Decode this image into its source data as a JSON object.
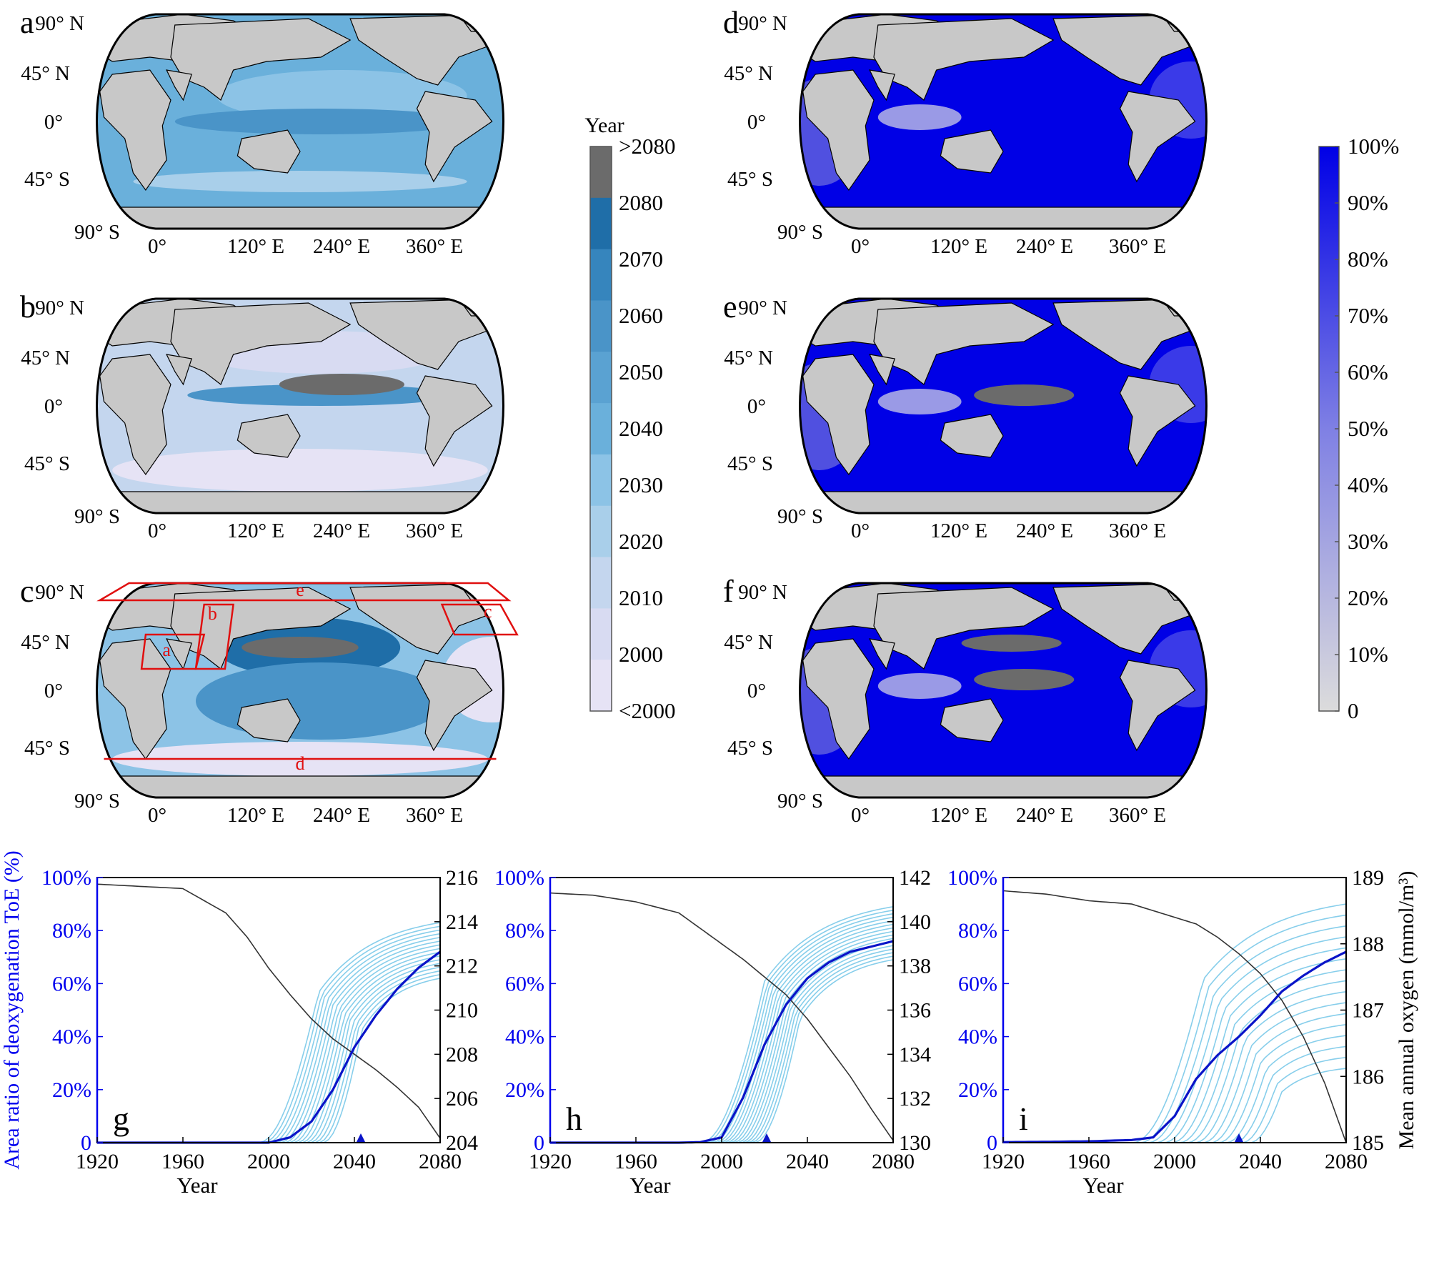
{
  "map_panels": [
    {
      "letter": "a",
      "scheme": "toe",
      "red_regions": false
    },
    {
      "letter": "b",
      "scheme": "toe",
      "red_regions": false
    },
    {
      "letter": "c",
      "scheme": "toe",
      "red_regions": true
    },
    {
      "letter": "d",
      "scheme": "pct",
      "red_regions": false
    },
    {
      "letter": "e",
      "scheme": "pct",
      "red_regions": false
    },
    {
      "letter": "f",
      "scheme": "pct",
      "red_regions": false
    }
  ],
  "map_labels": {
    "lat": [
      "90° N",
      "45° N",
      "0°",
      "45° S",
      "90° S"
    ],
    "lon": [
      "0°",
      "120° E",
      "240° E",
      "360° E"
    ]
  },
  "region_labels": [
    "a",
    "b",
    "c",
    "d",
    "e"
  ],
  "colorbar_year": {
    "title": "Year",
    "ticks": [
      ">2080",
      "2080",
      "2070",
      "2060",
      "2050",
      "2040",
      "2030",
      "2020",
      "2010",
      "2000",
      "<2000"
    ],
    "colors": [
      "#6b6b6b",
      "#1f6ea8",
      "#3685bd",
      "#4a94c8",
      "#5aa2d2",
      "#6ab0db",
      "#8cc3e6",
      "#a9cfea",
      "#c4d6ee",
      "#d8dbf2",
      "#e6e3f5"
    ]
  },
  "colorbar_pct": {
    "ticks": [
      "100%",
      "90%",
      "80%",
      "70%",
      "60%",
      "50%",
      "40%",
      "30%",
      "20%",
      "10%",
      "0"
    ],
    "color_top": "#0000e6",
    "color_bottom": "#dcdcdc"
  },
  "colors": {
    "land": "#c8c8c8",
    "ensemble": "#87ceeb",
    "mean": "#0a14c8",
    "oxygen": "#333333",
    "left_axis": "#0000ee",
    "regions": "#e01010"
  },
  "chart_data": [
    {
      "type": "line",
      "panel": "g",
      "xlabel": "Year",
      "ylabel_left": "Area ratio of deoxygenation ToE (%)",
      "ylabel_right": "",
      "xlim": [
        1920,
        2080
      ],
      "xticks": [
        "1920",
        "1960",
        "2000",
        "2040",
        "2080"
      ],
      "ylim_left": [
        0,
        100
      ],
      "yticks_left": [
        "0",
        "20%",
        "40%",
        "60%",
        "80%",
        "100%"
      ],
      "ylim_right": [
        204,
        216
      ],
      "yticks_right": [
        "204",
        "206",
        "208",
        "210",
        "212",
        "214",
        "216"
      ],
      "toe_marker_year": 2043,
      "x": [
        1920,
        1940,
        1960,
        1980,
        1990,
        2000,
        2010,
        2020,
        2030,
        2040,
        2050,
        2060,
        2070,
        2080
      ],
      "series": [
        {
          "role": "mean",
          "values": [
            0,
            0,
            0,
            0,
            0,
            0,
            2,
            8,
            20,
            36,
            48,
            58,
            66,
            72
          ]
        },
        {
          "role": "oxygen",
          "values": [
            215.7,
            215.6,
            215.5,
            214.4,
            213.3,
            211.9,
            210.7,
            209.6,
            208.7,
            208.0,
            207.3,
            206.5,
            205.6,
            204.2
          ]
        }
      ],
      "ensemble_spread": {
        "start_years": [
          1995,
          2025
        ],
        "end_values": [
          62,
          83
        ]
      }
    },
    {
      "type": "line",
      "panel": "h",
      "xlabel": "Year",
      "ylabel_left": "",
      "ylabel_right": "",
      "xlim": [
        1920,
        2080
      ],
      "xticks": [
        "1920",
        "1960",
        "2000",
        "2040",
        "2080"
      ],
      "ylim_left": [
        0,
        100
      ],
      "yticks_left": [
        "0",
        "20%",
        "40%",
        "60%",
        "80%",
        "100%"
      ],
      "ylim_right": [
        130,
        142
      ],
      "yticks_right": [
        "130",
        "132",
        "134",
        "136",
        "138",
        "140",
        "142"
      ],
      "toe_marker_year": 2021,
      "x": [
        1920,
        1940,
        1960,
        1980,
        1990,
        2000,
        2010,
        2020,
        2030,
        2040,
        2050,
        2060,
        2070,
        2080
      ],
      "series": [
        {
          "role": "mean",
          "values": [
            0,
            0,
            0,
            0,
            0.2,
            2,
            17,
            37,
            52,
            62,
            68,
            72,
            74,
            76
          ]
        },
        {
          "role": "oxygen",
          "values": [
            141.3,
            141.2,
            140.9,
            140.4,
            139.7,
            139.0,
            138.3,
            137.5,
            136.7,
            135.6,
            134.3,
            133.0,
            131.5,
            130.1
          ]
        }
      ],
      "ensemble_spread": {
        "start_years": [
          1990,
          2015
        ],
        "end_values": [
          69,
          89
        ]
      }
    },
    {
      "type": "line",
      "panel": "i",
      "xlabel": "Year",
      "ylabel_left": "",
      "ylabel_right": "Mean annual oxygen (mmol/m³)",
      "xlim": [
        1920,
        2080
      ],
      "xticks": [
        "1920",
        "1960",
        "2000",
        "2040",
        "2080"
      ],
      "ylim_left": [
        0,
        100
      ],
      "yticks_left": [
        "0",
        "20%",
        "40%",
        "60%",
        "80%",
        "100%"
      ],
      "ylim_right": [
        185,
        189
      ],
      "yticks_right": [
        "185",
        "186",
        "187",
        "188",
        "189"
      ],
      "toe_marker_year": 2030,
      "x": [
        1920,
        1940,
        1960,
        1980,
        1990,
        2000,
        2010,
        2020,
        2030,
        2040,
        2050,
        2060,
        2070,
        2080
      ],
      "series": [
        {
          "role": "mean",
          "values": [
            0.2,
            0.3,
            0.5,
            1,
            2,
            10,
            24,
            33,
            40,
            48,
            57,
            63,
            68,
            72
          ]
        },
        {
          "role": "oxygen",
          "values": [
            188.8,
            188.75,
            188.65,
            188.6,
            188.5,
            188.4,
            188.3,
            188.1,
            187.85,
            187.55,
            187.15,
            186.6,
            185.9,
            185.0
          ]
        }
      ],
      "ensemble_spread": {
        "start_years": [
          1980,
          2035
        ],
        "end_values": [
          28,
          90
        ]
      }
    }
  ]
}
